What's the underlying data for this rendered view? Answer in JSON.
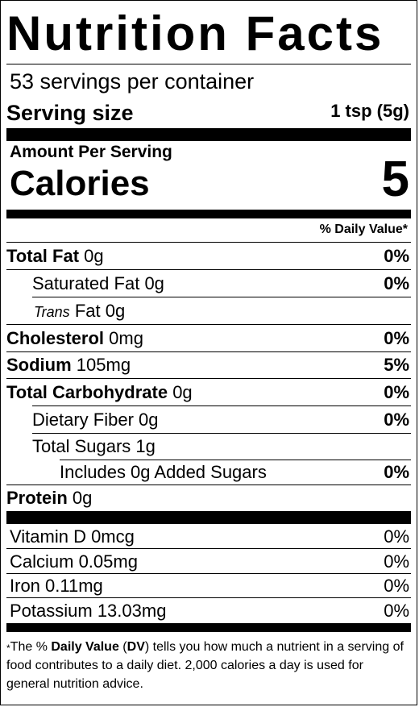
{
  "title": "Nutrition Facts",
  "servings_per_container": "53 servings per container",
  "serving_size": {
    "label": "Serving size",
    "value": "1 tsp (5g)"
  },
  "amount_per_serving": "Amount Per Serving",
  "calories": {
    "label": "Calories",
    "value": "5"
  },
  "daily_value_header": "% Daily Value*",
  "nutrients": [
    {
      "name": "Total Fat",
      "amount": "0g",
      "dv": "0%"
    },
    {
      "name": "Saturated Fat",
      "amount": "0g",
      "dv": "0%"
    },
    {
      "name_italic": "Trans",
      "name": "Fat",
      "amount": "0g",
      "dv": ""
    },
    {
      "name": "Cholesterol",
      "amount": "0mg",
      "dv": "0%"
    },
    {
      "name": "Sodium",
      "amount": "105mg",
      "dv": "5%"
    },
    {
      "name": "Total Carbohydrate",
      "amount": "0g",
      "dv": "0%"
    },
    {
      "name": "Dietary Fiber",
      "amount": "0g",
      "dv": "0%"
    },
    {
      "name": "Total Sugars",
      "amount": "1g",
      "dv": ""
    },
    {
      "name": "Includes 0g Added Sugars",
      "amount": "",
      "dv": "0%"
    },
    {
      "name": "Protein",
      "amount": "0g",
      "dv": ""
    }
  ],
  "vitamins": [
    {
      "name": "Vitamin D 0mcg",
      "dv": "0%"
    },
    {
      "name": "Calcium 0.05mg",
      "dv": "0%"
    },
    {
      "name": "Iron 0.11mg",
      "dv": "0%"
    },
    {
      "name": "Potassium 13.03mg",
      "dv": "0%"
    }
  ],
  "footnote": {
    "star": "*",
    "text_before": "The % ",
    "bold_1": "Daily Value",
    "text_mid": " (",
    "bold_2": "DV",
    "text_after": ") tells you how much a nutrient in a serving of food contributes to a daily diet. 2,000 calories a day is used for general nutrition advice."
  }
}
